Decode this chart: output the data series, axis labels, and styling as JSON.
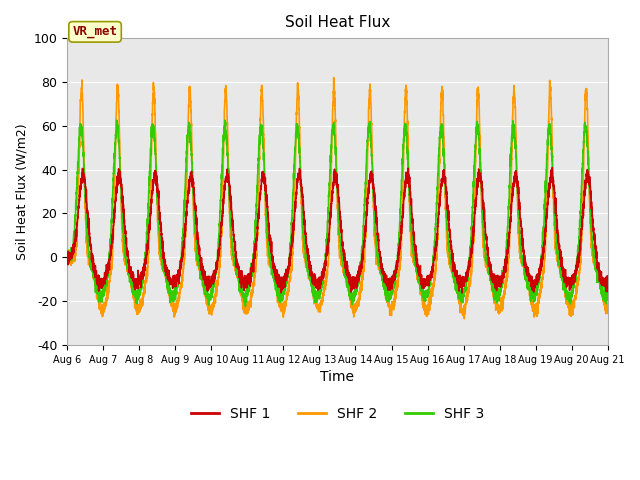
{
  "title": "Soil Heat Flux",
  "xlabel": "Time",
  "ylabel": "Soil Heat Flux (W/m2)",
  "ylim": [
    -40,
    100
  ],
  "yticks": [
    -40,
    -20,
    0,
    20,
    40,
    60,
    80,
    100
  ],
  "start_day": 6,
  "end_day": 21,
  "colors": {
    "SHF 1": "#cc0000",
    "SHF 2": "#ff9900",
    "SHF 3": "#33cc00"
  },
  "legend_labels": [
    "SHF 1",
    "SHF 2",
    "SHF 3"
  ],
  "annotation_text": "VR_met",
  "annotation_color": "#8B0000",
  "annotation_bg": "#ffffcc",
  "annotation_border": "#999900",
  "figure_color": "#ffffff",
  "plot_bg_color": "#e8e8e8",
  "shf1_peak": 38,
  "shf1_trough": -12,
  "shf2_peak": 78,
  "shf2_trough": -24,
  "shf3_peak": 60,
  "shf3_trough": -18,
  "num_days": 15,
  "points_per_day": 288
}
